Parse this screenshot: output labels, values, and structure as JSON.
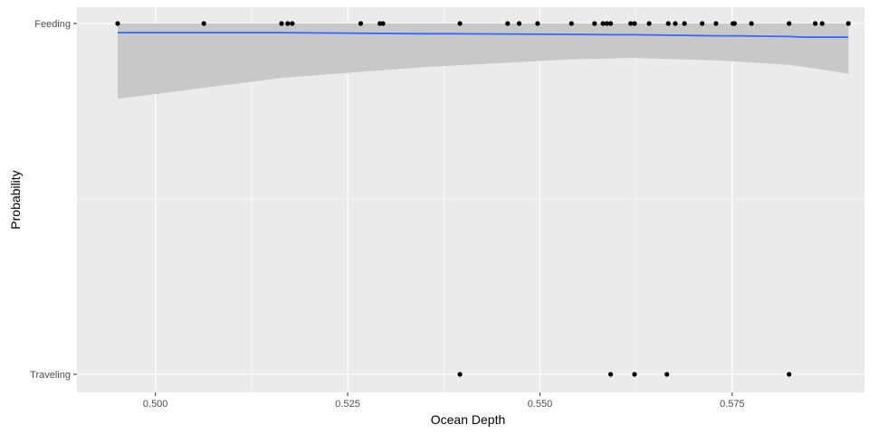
{
  "chart_data": {
    "type": "scatter",
    "title": "",
    "xlabel": "Ocean Depth",
    "ylabel": "Probability",
    "xlim": [
      0.4898,
      0.5922
    ],
    "x_ticks": [
      0.5,
      0.525,
      0.55,
      0.575
    ],
    "x_tick_labels": [
      "0.500",
      "0.525",
      "0.550",
      "0.575"
    ],
    "y_categories": [
      "Feeding",
      "Traveling"
    ],
    "grid": true,
    "legend": "none",
    "colors": {
      "panel_background": "#ebebeb",
      "grid": "#ffffff",
      "points": "#000000",
      "smooth_line": "#3366ff",
      "confidence_band": "#c8c8c8"
    },
    "series": [
      {
        "category": "Feeding",
        "x": [
          0.4951,
          0.5063,
          0.5164,
          0.5172,
          0.5178,
          0.5267,
          0.5292,
          0.5296,
          0.5396,
          0.5458,
          0.5473,
          0.5497,
          0.5541,
          0.5571,
          0.5582,
          0.5587,
          0.5592,
          0.5618,
          0.5623,
          0.5642,
          0.5667,
          0.5676,
          0.5688,
          0.5711,
          0.5729,
          0.5751,
          0.5753,
          0.5775,
          0.5824,
          0.5858,
          0.5867,
          0.5901
        ]
      },
      {
        "category": "Traveling",
        "x": [
          0.5396,
          0.5592,
          0.5623,
          0.5665,
          0.5824
        ]
      }
    ],
    "smooth": {
      "x": [
        0.4951,
        0.5164,
        0.5346,
        0.5385,
        0.5541,
        0.5587,
        0.5618,
        0.5729,
        0.5751,
        0.5824,
        0.5845,
        0.5901
      ],
      "y": [
        0.974,
        0.974,
        0.971,
        0.971,
        0.969,
        0.968,
        0.968,
        0.965,
        0.965,
        0.963,
        0.961,
        0.961
      ],
      "ci_lower": [
        0.785,
        0.845,
        0.875,
        0.88,
        0.898,
        0.9,
        0.902,
        0.895,
        0.892,
        0.882,
        0.876,
        0.857
      ],
      "ci_upper": [
        1.0,
        1.0,
        1.0,
        1.0,
        1.0,
        1.0,
        1.0,
        1.0,
        1.0,
        1.0,
        1.0,
        1.0
      ]
    }
  }
}
